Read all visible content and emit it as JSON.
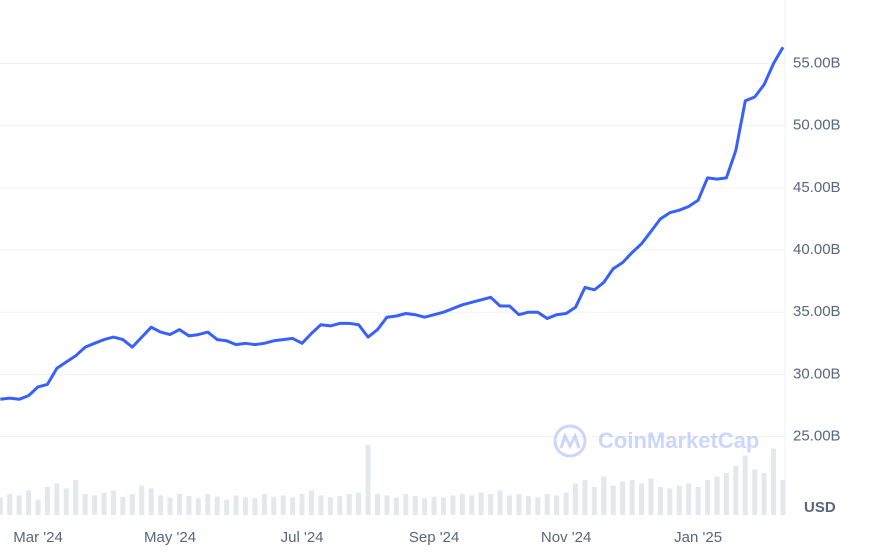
{
  "chart_data": {
    "type": "line",
    "categories": [
      null,
      null,
      null,
      null,
      "Mar '24",
      null,
      null,
      null,
      null,
      null,
      null,
      null,
      null,
      null,
      null,
      null,
      null,
      null,
      "May '24",
      null,
      null,
      null,
      null,
      null,
      null,
      null,
      null,
      null,
      null,
      null,
      null,
      null,
      "Jul '24",
      null,
      null,
      null,
      null,
      null,
      null,
      null,
      null,
      null,
      null,
      null,
      null,
      null,
      "Sep '24",
      null,
      null,
      null,
      null,
      null,
      null,
      null,
      null,
      null,
      null,
      null,
      null,
      null,
      "Nov '24",
      null,
      null,
      null,
      null,
      null,
      null,
      null,
      null,
      null,
      null,
      null,
      null,
      null,
      "Jan '25",
      null,
      null,
      null,
      null,
      null,
      null,
      null,
      null,
      null
    ],
    "series": [
      {
        "name": "USD",
        "color": "#3861fb",
        "values": [
          28.0,
          28.1,
          28.0,
          28.3,
          29.0,
          29.2,
          30.5,
          31.0,
          31.5,
          32.2,
          32.5,
          32.8,
          33.0,
          32.8,
          32.2,
          33.0,
          33.8,
          33.4,
          33.2,
          33.6,
          33.1,
          33.2,
          33.4,
          32.8,
          32.7,
          32.4,
          32.5,
          32.4,
          32.5,
          32.7,
          32.8,
          32.9,
          32.5,
          33.3,
          34.0,
          33.9,
          34.1,
          34.1,
          34.0,
          33.0,
          33.6,
          34.6,
          34.7,
          34.9,
          34.8,
          34.6,
          34.8,
          35.0,
          35.3,
          35.6,
          35.8,
          36.0,
          36.2,
          35.5,
          35.5,
          34.8,
          35.0,
          35.0,
          34.5,
          34.8,
          34.9,
          35.4,
          37.0,
          36.8,
          37.4,
          38.5,
          39.0,
          39.8,
          40.5,
          41.5,
          42.5,
          43.0,
          43.2,
          43.5,
          44.0,
          45.8,
          45.7,
          45.8,
          48.0,
          52.0,
          52.3,
          53.3,
          55.0,
          56.3
        ]
      }
    ],
    "volume": {
      "color": "#e4e7ec",
      "values": [
        25,
        30,
        28,
        35,
        22,
        40,
        45,
        38,
        50,
        30,
        28,
        32,
        35,
        26,
        30,
        42,
        38,
        28,
        25,
        30,
        27,
        24,
        30,
        26,
        22,
        28,
        25,
        24,
        30,
        26,
        28,
        25,
        30,
        35,
        28,
        25,
        27,
        30,
        32,
        100,
        30,
        28,
        25,
        30,
        27,
        24,
        26,
        25,
        28,
        30,
        28,
        32,
        30,
        35,
        28,
        30,
        27,
        25,
        30,
        28,
        32,
        45,
        50,
        40,
        55,
        42,
        48,
        50,
        45,
        52,
        40,
        38,
        42,
        45,
        40,
        50,
        55,
        60,
        70,
        85,
        65,
        60,
        95,
        50
      ]
    },
    "ylim": [
      18.7,
      60.1
    ],
    "yticks": [
      {
        "value": 25,
        "label": "25.00B"
      },
      {
        "value": 30,
        "label": "30.00B"
      },
      {
        "value": 35,
        "label": "35.00B"
      },
      {
        "value": 40,
        "label": "40.00B"
      },
      {
        "value": 45,
        "label": "45.00B"
      },
      {
        "value": 50,
        "label": "50.00B"
      },
      {
        "value": 55,
        "label": "55.00B"
      }
    ],
    "grid": true,
    "watermark": "CoinMarketCap"
  }
}
